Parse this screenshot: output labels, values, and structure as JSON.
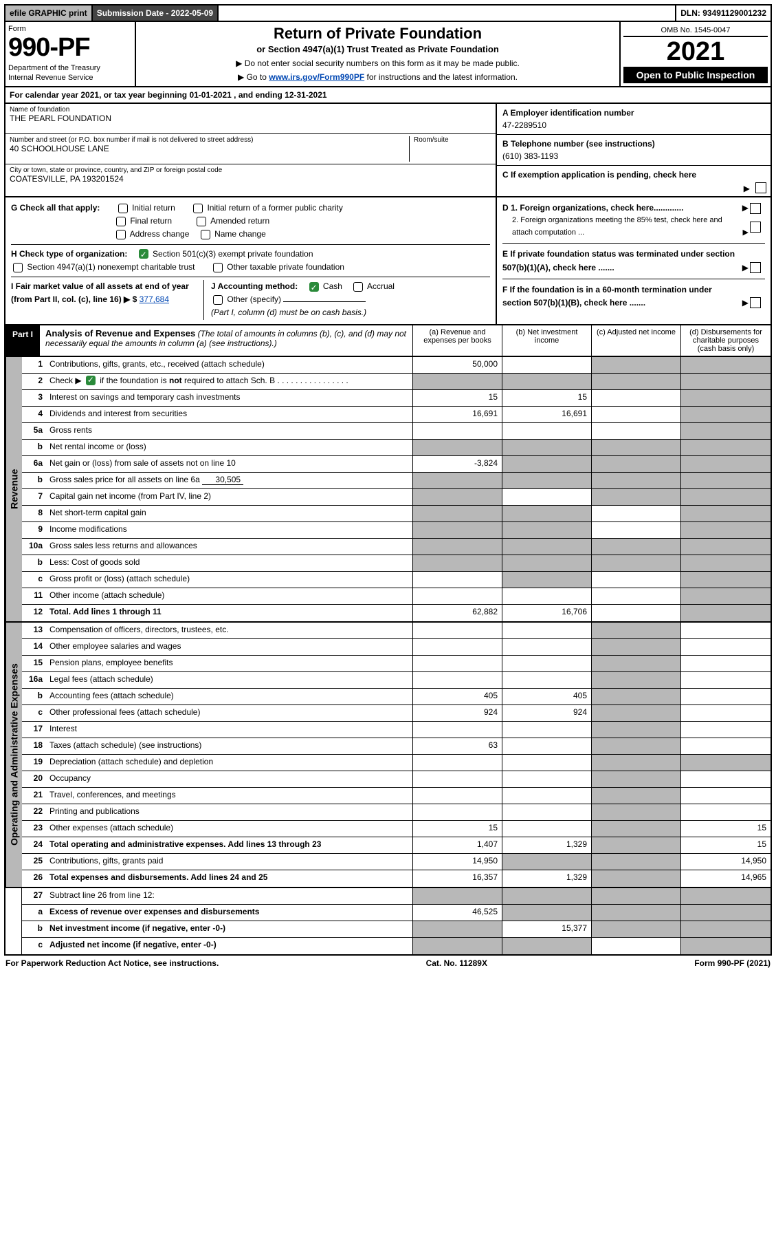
{
  "topbar": {
    "efile": "efile GRAPHIC print",
    "subdate_label": "Submission Date - 2022-05-09",
    "dln": "DLN: 93491129001232"
  },
  "header": {
    "form_label": "Form",
    "form_num": "990-PF",
    "dept": "Department of the Treasury",
    "irs": "Internal Revenue Service",
    "title": "Return of Private Foundation",
    "subtitle": "or Section 4947(a)(1) Trust Treated as Private Foundation",
    "instr1": "▶ Do not enter social security numbers on this form as it may be made public.",
    "instr2_pre": "▶ Go to ",
    "instr2_link": "www.irs.gov/Form990PF",
    "instr2_post": " for instructions and the latest information.",
    "omb": "OMB No. 1545-0047",
    "taxyear": "2021",
    "open": "Open to Public Inspection"
  },
  "cy": "For calendar year 2021, or tax year beginning 01-01-2021             , and ending 12-31-2021",
  "ident": {
    "name_lbl": "Name of foundation",
    "name": "THE PEARL FOUNDATION",
    "addr_lbl": "Number and street (or P.O. box number if mail is not delivered to street address)",
    "addr": "40 SCHOOLHOUSE LANE",
    "room_lbl": "Room/suite",
    "city_lbl": "City or town, state or province, country, and ZIP or foreign postal code",
    "city": "COATESVILLE, PA  193201524",
    "a_lbl": "A Employer identification number",
    "ein": "47-2289510",
    "b_lbl": "B Telephone number (see instructions)",
    "tel": "(610) 383-1193",
    "c_lbl": "C If exemption application is pending, check here"
  },
  "checks": {
    "g": "G Check all that apply:",
    "g_opts": [
      "Initial return",
      "Initial return of a former public charity",
      "Final return",
      "Amended return",
      "Address change",
      "Name change"
    ],
    "h": "H Check type of organization:",
    "h1": "Section 501(c)(3) exempt private foundation",
    "h2": "Section 4947(a)(1) nonexempt charitable trust",
    "h3": "Other taxable private foundation",
    "i_lbl": "I Fair market value of all assets at end of year (from Part II, col. (c), line 16) ▶ $",
    "i_val": "377,684",
    "j_lbl": "J Accounting method:",
    "j_cash": "Cash",
    "j_accr": "Accrual",
    "j_other": "Other (specify)",
    "j_note": "(Part I, column (d) must be on cash basis.)",
    "d1": "D 1. Foreign organizations, check here.............",
    "d2": "2. Foreign organizations meeting the 85% test, check here and attach computation ...",
    "e": "E  If private foundation status was terminated under section 507(b)(1)(A), check here .......",
    "f": "F  If the foundation is in a 60-month termination under section 507(b)(1)(B), check here ......."
  },
  "part1": {
    "label": "Part I",
    "title": "Analysis of Revenue and Expenses",
    "note": " (The total of amounts in columns (b), (c), and (d) may not necessarily equal the amounts in column (a) (see instructions).)",
    "cols": {
      "a": "(a)  Revenue and expenses per books",
      "b": "(b)  Net investment income",
      "c": "(c)  Adjusted net income",
      "d": "(d)  Disbursements for charitable purposes (cash basis only)"
    }
  },
  "side": {
    "rev": "Revenue",
    "exp": "Operating and Administrative Expenses"
  },
  "rows_rev": [
    {
      "ln": "1",
      "desc": "Contributions, gifts, grants, etc., received (attach schedule)",
      "a": "50,000",
      "dGrey": true,
      "cGrey": true
    },
    {
      "ln": "2",
      "desc": "Check ▶ ☑ if the foundation is not required to attach Sch. B",
      "noCells": false,
      "aGrey": true,
      "bGrey": true,
      "cGrey": true,
      "dGrey": true,
      "checkmark": true
    },
    {
      "ln": "3",
      "desc": "Interest on savings and temporary cash investments",
      "a": "15",
      "b": "15",
      "dGrey": true
    },
    {
      "ln": "4",
      "desc": "Dividends and interest from securities",
      "a": "16,691",
      "b": "16,691",
      "dGrey": true
    },
    {
      "ln": "5a",
      "desc": "Gross rents",
      "dGrey": true
    },
    {
      "ln": "b",
      "desc": "Net rental income or (loss)",
      "dGrey": true,
      "aGrey": true,
      "bGrey": true,
      "cGrey": true
    },
    {
      "ln": "6a",
      "desc": "Net gain or (loss) from sale of assets not on line 10",
      "a": "-3,824",
      "dGrey": true,
      "bGrey": true,
      "cGrey": true
    },
    {
      "ln": "b",
      "desc": "Gross sales price for all assets on line 6a",
      "inlineVal": "30,505",
      "aGrey": true,
      "bGrey": true,
      "cGrey": true,
      "dGrey": true
    },
    {
      "ln": "7",
      "desc": "Capital gain net income (from Part IV, line 2)",
      "aGrey": true,
      "cGrey": true,
      "dGrey": true
    },
    {
      "ln": "8",
      "desc": "Net short-term capital gain",
      "aGrey": true,
      "bGrey": true,
      "dGrey": true
    },
    {
      "ln": "9",
      "desc": "Income modifications",
      "aGrey": true,
      "bGrey": true,
      "dGrey": true
    },
    {
      "ln": "10a",
      "desc": "Gross sales less returns and allowances",
      "aGrey": true,
      "bGrey": true,
      "cGrey": true,
      "dGrey": true
    },
    {
      "ln": "b",
      "desc": "Less: Cost of goods sold",
      "aGrey": true,
      "bGrey": true,
      "cGrey": true,
      "dGrey": true
    },
    {
      "ln": "c",
      "desc": "Gross profit or (loss) (attach schedule)",
      "bGrey": true,
      "dGrey": true
    },
    {
      "ln": "11",
      "desc": "Other income (attach schedule)",
      "dGrey": true
    },
    {
      "ln": "12",
      "desc": "Total. Add lines 1 through 11",
      "a": "62,882",
      "b": "16,706",
      "dGrey": true,
      "bold": true
    }
  ],
  "rows_exp": [
    {
      "ln": "13",
      "desc": "Compensation of officers, directors, trustees, etc.",
      "cGrey": true
    },
    {
      "ln": "14",
      "desc": "Other employee salaries and wages",
      "cGrey": true
    },
    {
      "ln": "15",
      "desc": "Pension plans, employee benefits",
      "cGrey": true
    },
    {
      "ln": "16a",
      "desc": "Legal fees (attach schedule)",
      "cGrey": true
    },
    {
      "ln": "b",
      "desc": "Accounting fees (attach schedule)",
      "a": "405",
      "b": "405",
      "cGrey": true
    },
    {
      "ln": "c",
      "desc": "Other professional fees (attach schedule)",
      "a": "924",
      "b": "924",
      "cGrey": true
    },
    {
      "ln": "17",
      "desc": "Interest",
      "cGrey": true
    },
    {
      "ln": "18",
      "desc": "Taxes (attach schedule) (see instructions)",
      "a": "63",
      "cGrey": true
    },
    {
      "ln": "19",
      "desc": "Depreciation (attach schedule) and depletion",
      "cGrey": true,
      "dGrey": true
    },
    {
      "ln": "20",
      "desc": "Occupancy",
      "cGrey": true
    },
    {
      "ln": "21",
      "desc": "Travel, conferences, and meetings",
      "cGrey": true
    },
    {
      "ln": "22",
      "desc": "Printing and publications",
      "cGrey": true
    },
    {
      "ln": "23",
      "desc": "Other expenses (attach schedule)",
      "a": "15",
      "cGrey": true,
      "d": "15"
    },
    {
      "ln": "24",
      "desc": "Total operating and administrative expenses. Add lines 13 through 23",
      "a": "1,407",
      "b": "1,329",
      "cGrey": true,
      "d": "15",
      "bold": true
    },
    {
      "ln": "25",
      "desc": "Contributions, gifts, grants paid",
      "a": "14,950",
      "bGrey": true,
      "cGrey": true,
      "d": "14,950"
    },
    {
      "ln": "26",
      "desc": "Total expenses and disbursements. Add lines 24 and 25",
      "a": "16,357",
      "b": "1,329",
      "cGrey": true,
      "d": "14,965",
      "bold": true
    }
  ],
  "rows_bot": [
    {
      "ln": "27",
      "desc": "Subtract line 26 from line 12:",
      "aGrey": true,
      "bGrey": true,
      "cGrey": true,
      "dGrey": true
    },
    {
      "ln": "a",
      "desc": "Excess of revenue over expenses and disbursements",
      "a": "46,525",
      "bGrey": true,
      "cGrey": true,
      "dGrey": true,
      "bold": true
    },
    {
      "ln": "b",
      "desc": "Net investment income (if negative, enter -0-)",
      "aGrey": true,
      "b": "15,377",
      "cGrey": true,
      "dGrey": true,
      "bold": true
    },
    {
      "ln": "c",
      "desc": "Adjusted net income (if negative, enter -0-)",
      "aGrey": true,
      "bGrey": true,
      "dGrey": true,
      "bold": true
    }
  ],
  "footer": {
    "left": "For Paperwork Reduction Act Notice, see instructions.",
    "mid": "Cat. No. 11289X",
    "right": "Form 990-PF (2021)"
  }
}
